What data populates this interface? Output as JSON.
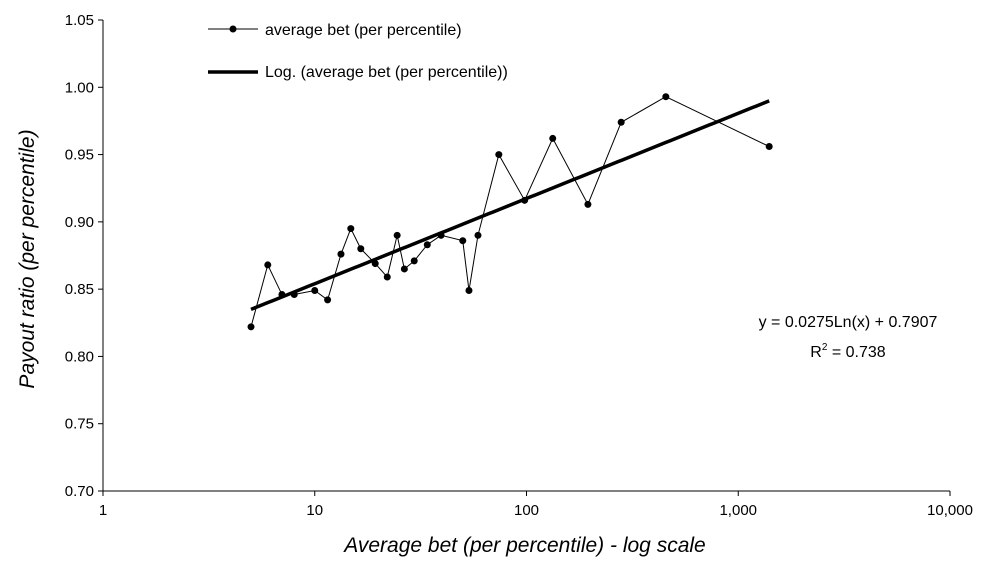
{
  "chart_data": {
    "type": "scatter",
    "title": "",
    "xlabel": "Average bet (per percentile) - log scale",
    "ylabel": "Payout ratio (per percentile)",
    "x_scale": "log",
    "xlim": [
      1,
      10000
    ],
    "ylim": [
      0.7,
      1.05
    ],
    "x_ticks": [
      1,
      10,
      100,
      1000,
      10000
    ],
    "x_tick_labels": [
      "1",
      "10",
      "100",
      "1,000",
      "10,000"
    ],
    "y_ticks": [
      0.7,
      0.75,
      0.8,
      0.85,
      0.9,
      0.95,
      1.0,
      1.05
    ],
    "y_tick_labels": [
      "0.70",
      "0.75",
      "0.80",
      "0.85",
      "0.90",
      "0.95",
      "1.00",
      "1.05"
    ],
    "grid": false,
    "legend_position": "top-left",
    "series": [
      {
        "name": "average bet (per percentile)",
        "style": "line-markers",
        "color": "#000000",
        "x": [
          5,
          6,
          7,
          8,
          10,
          11.5,
          13.3,
          14.8,
          16.5,
          19.3,
          22,
          24.5,
          26.5,
          29.5,
          34,
          39.5,
          50,
          53.5,
          59,
          74,
          98,
          133,
          195,
          280,
          455,
          1400
        ],
        "y": [
          0.822,
          0.868,
          0.846,
          0.846,
          0.849,
          0.842,
          0.876,
          0.895,
          0.88,
          0.869,
          0.859,
          0.89,
          0.865,
          0.871,
          0.883,
          0.89,
          0.886,
          0.849,
          0.89,
          0.95,
          0.916,
          0.962,
          0.913,
          0.974,
          0.993,
          0.956
        ]
      },
      {
        "name": "Log. (average bet (per percentile))",
        "style": "trendline",
        "color": "#000000",
        "formula": {
          "a": 0.0275,
          "b": 0.7907
        },
        "x_range": [
          5,
          1400
        ]
      }
    ],
    "annotations": {
      "equation": "y = 0.0275Ln(x) + 0.7907",
      "r2_prefix": "R",
      "r2_sup": "2",
      "r2_value": " = 0.738"
    }
  }
}
